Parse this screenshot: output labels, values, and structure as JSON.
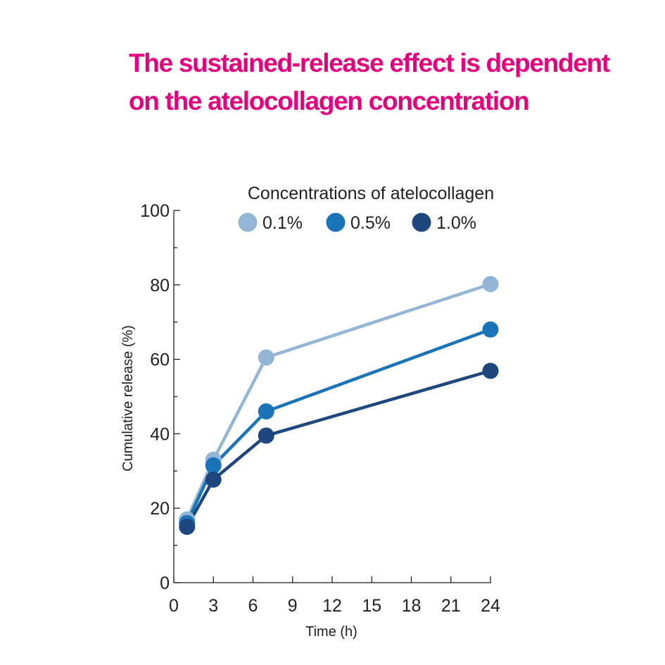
{
  "title_lines": [
    "The sustained-release effect is dependent",
    "on the atelocollagen concentration"
  ],
  "colors": {
    "title": "#e6007e",
    "axis": "#231f20",
    "series": [
      "#94b6d6",
      "#1b74b8",
      "#1f477f"
    ]
  },
  "chart_data": {
    "type": "line",
    "xlabel": "Time (h)",
    "ylabel": "Cumulative release (%)",
    "xlim": [
      0,
      24
    ],
    "ylim": [
      0,
      100
    ],
    "xticks": [
      0,
      3,
      6,
      9,
      12,
      15,
      18,
      21,
      24
    ],
    "yticks": [
      0,
      20,
      40,
      60,
      80,
      100
    ],
    "grid": false,
    "legend": {
      "title": "Concentrations of atelocollagen",
      "position": "top"
    },
    "x": [
      1,
      3,
      7,
      24
    ],
    "series": [
      {
        "name": "0.1%",
        "values": [
          17,
          33,
          60.5,
          80.2
        ]
      },
      {
        "name": "0.5%",
        "values": [
          16,
          31.5,
          46,
          68
        ]
      },
      {
        "name": "1.0%",
        "values": [
          15,
          27.7,
          39.5,
          56.9
        ]
      }
    ]
  }
}
